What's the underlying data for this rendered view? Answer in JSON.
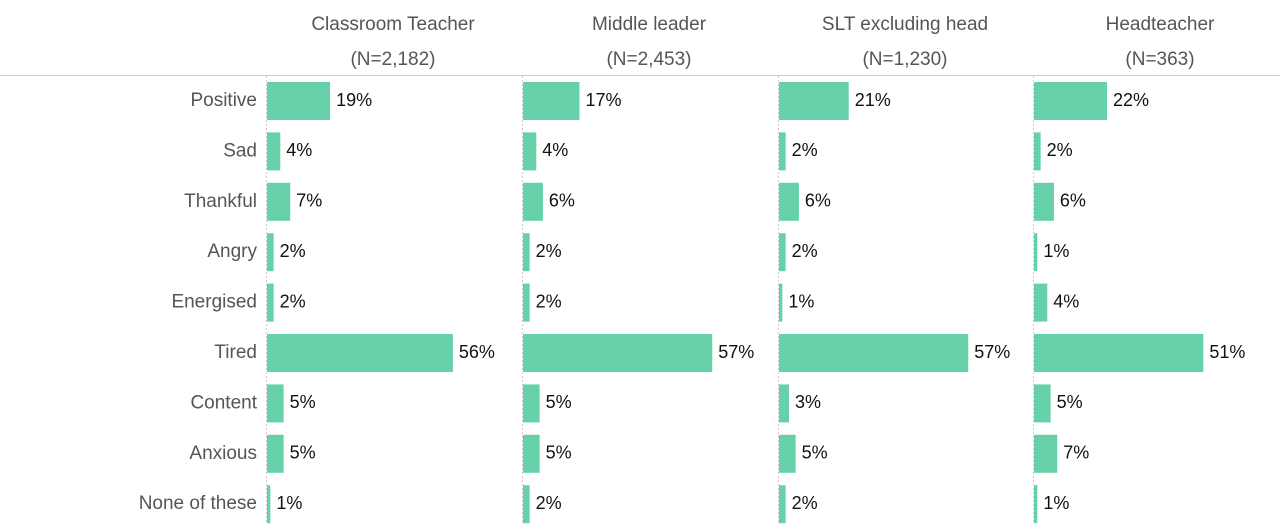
{
  "chart_data": {
    "type": "bar",
    "orientation": "horizontal",
    "categories": [
      "Positive",
      "Sad",
      "Thankful",
      "Angry",
      "Energised",
      "Tired",
      "Content",
      "Anxious",
      "None of these"
    ],
    "series": [
      {
        "name": "Classroom Teacher",
        "n_label": "(N=2,182)",
        "color": "#66d1a8",
        "values": [
          19,
          4,
          7,
          2,
          2,
          56,
          5,
          5,
          1
        ],
        "value_labels": [
          "19%",
          "4%",
          "7%",
          "2%",
          "2%",
          "56%",
          "5%",
          "5%",
          "1%"
        ]
      },
      {
        "name": "Middle leader",
        "n_label": "(N=2,453)",
        "color": "#66d1a8",
        "values": [
          17,
          4,
          6,
          2,
          2,
          57,
          5,
          5,
          2
        ],
        "value_labels": [
          "17%",
          "4%",
          "6%",
          "2%",
          "2%",
          "57%",
          "5%",
          "5%",
          "2%"
        ]
      },
      {
        "name": "SLT excluding head",
        "n_label": "(N=1,230)",
        "color": "#66d1a8",
        "values": [
          21,
          2,
          6,
          2,
          1,
          57,
          3,
          5,
          2
        ],
        "value_labels": [
          "21%",
          "2%",
          "6%",
          "2%",
          "1%",
          "57%",
          "3%",
          "5%",
          "2%"
        ]
      },
      {
        "name": "Headteacher",
        "n_label": "(N=363)",
        "color": "#66d1a8",
        "values": [
          22,
          2,
          6,
          1,
          4,
          51,
          5,
          7,
          1
        ],
        "value_labels": [
          "22%",
          "2%",
          "6%",
          "1%",
          "4%",
          "51%",
          "5%",
          "7%",
          "1%"
        ]
      }
    ]
  }
}
